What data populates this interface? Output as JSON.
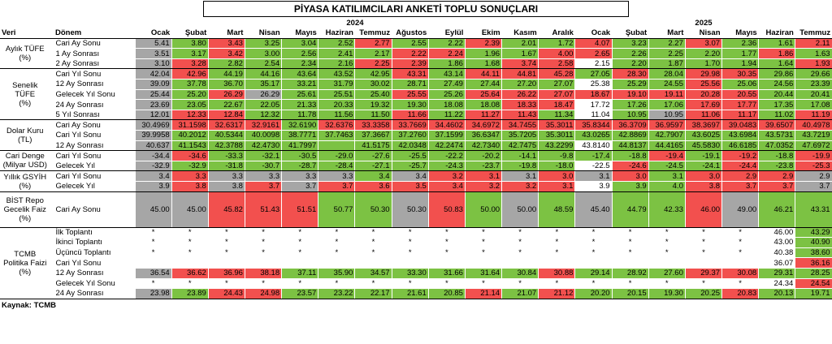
{
  "title": "PİYASA KATILIMCILARI ANKETİ TOPLU SONUÇLARI",
  "header": {
    "veri": "Veri",
    "donem": "Dönem",
    "years": [
      {
        "label": "2024",
        "span": 12
      },
      {
        "label": "2025",
        "span": 7
      }
    ],
    "months": [
      "Ocak",
      "Şubat",
      "Mart",
      "Nisan",
      "Mayıs",
      "Haziran",
      "Temmuz",
      "Ağustos",
      "Eylül",
      "Ekim",
      "Kasım",
      "Aralık",
      "Ocak",
      "Şubat",
      "Mart",
      "Nisan",
      "Mayıs",
      "Haziran",
      "Temmuz"
    ]
  },
  "palette": {
    "g": "#7cc243",
    "r": "#f2504e",
    "s": "#a6a6a6",
    "w": "#ffffff"
  },
  "groups": [
    {
      "label": "Aylık TÜFE\n(%)",
      "rows": [
        {
          "label": "Cari Ay Sonu",
          "colors": "sgrgggrggrggrggrggr",
          "values": [
            "5.41",
            "3.80",
            "3.43",
            "3.25",
            "3.04",
            "2.52",
            "2.77",
            "2.55",
            "2.22",
            "2.39",
            "2.01",
            "1.72",
            "4.07",
            "3.23",
            "2.27",
            "3.07",
            "2.36",
            "1.61",
            "2.11"
          ]
        },
        {
          "label": "1 Ay Sonrası",
          "colors": "sgrggggrrggrrggggrg",
          "values": [
            "3.51",
            "3.17",
            "3.42",
            "3.00",
            "2.56",
            "2.41",
            "2.17",
            "2.22",
            "2.24",
            "1.96",
            "1.67",
            "4.00",
            "2.65",
            "2.26",
            "2.25",
            "2.20",
            "1.77",
            "1.86",
            "1.63"
          ]
        },
        {
          "label": "2 Ay Sonrası",
          "colors": "srggggrrggrrwgggggr",
          "values": [
            "3.10",
            "3.28",
            "2.82",
            "2.54",
            "2.34",
            "2.16",
            "2.25",
            "2.39",
            "1.86",
            "1.68",
            "3.74",
            "2.58",
            "2.15",
            "2.20",
            "1.87",
            "1.70",
            "1.94",
            "1.64",
            "1.93"
          ]
        }
      ]
    },
    {
      "label": "Senelik TÜFE\n(%)",
      "rows": [
        {
          "label": "Cari Yıl Sonu",
          "colors": "srgggggrgrrrgrgrrgg",
          "values": [
            "42.04",
            "42.96",
            "44.19",
            "44.16",
            "43.64",
            "43.52",
            "42.95",
            "43.31",
            "43.14",
            "44.11",
            "44.81",
            "45.28",
            "27.05",
            "28.30",
            "28.04",
            "29.98",
            "30.35",
            "29.86",
            "29.66"
          ]
        },
        {
          "label": "12 Ay Sonrası",
          "colors": "sgggggggggggwggrggg",
          "values": [
            "39.09",
            "37.78",
            "36.70",
            "35.17",
            "33.21",
            "31.79",
            "30.02",
            "28.71",
            "27.49",
            "27.44",
            "27.20",
            "27.07",
            "25.38",
            "25.29",
            "24.55",
            "25.56",
            "25.06",
            "24.56",
            "23.39"
          ]
        },
        {
          "label": "Gelecek Yıl Sonu",
          "colors": "sgrsgggrgrrrrrrrrgg",
          "values": [
            "25.44",
            "25.20",
            "26.29",
            "26.29",
            "25.61",
            "25.51",
            "25.40",
            "25.55",
            "25.26",
            "25.64",
            "26.22",
            "27.07",
            "18.67",
            "19.10",
            "19.11",
            "20.28",
            "20.55",
            "20.44",
            "20.41"
          ]
        },
        {
          "label": "24 Ay Sonrası",
          "colors": "sgggggggggrrwggrrgg",
          "values": [
            "23.69",
            "23.05",
            "22.67",
            "22.05",
            "21.33",
            "20.33",
            "19.32",
            "19.30",
            "18.08",
            "18.08",
            "18.33",
            "18.47",
            "17.72",
            "17.26",
            "17.06",
            "17.69",
            "17.77",
            "17.35",
            "17.08"
          ]
        },
        {
          "label": "5 Yıl Sonrası",
          "colors": "srrggggrgrrgwgsrrgr",
          "values": [
            "12.01",
            "12.33",
            "12.84",
            "12.32",
            "11.78",
            "11.56",
            "11.50",
            "11.66",
            "11.22",
            "11.27",
            "11.43",
            "11.34",
            "11.04",
            "10.95",
            "10.95",
            "11.06",
            "11.17",
            "11.02",
            "11.19"
          ]
        }
      ]
    },
    {
      "label": "Dolar Kuru\n(TL)",
      "rows": [
        {
          "label": "Cari Ay Sonu",
          "colors": "srrrgrrrrrrrrrrrrrr",
          "values": [
            "30.4969",
            "31.1598",
            "32.6317",
            "32.9161",
            "32.6190",
            "32.6376",
            "33.3358",
            "33.7669",
            "34.4602",
            "34.6972",
            "34.7455",
            "35.3011",
            "35.8344",
            "36.3709",
            "36.9597",
            "38.3697",
            "39.0483",
            "39.6507",
            "40.4978"
          ]
        },
        {
          "label": "Cari Yıl Sonu",
          "colors": "sgggggggggggggggggg",
          "values": [
            "39.9958",
            "40.2012",
            "40.5344",
            "40.0098",
            "38.7771",
            "37.7463",
            "37.3667",
            "37.2760",
            "37.1599",
            "36.6347",
            "35.7205",
            "35.3011",
            "43.0265",
            "42.8869",
            "42.7907",
            "43.6025",
            "43.6984",
            "43.5731",
            "43.7219"
          ]
        },
        {
          "label": "12 Ay Sonrası",
          "colors": "sgggggggggggwgggggg",
          "values": [
            "40.637",
            "41.1543",
            "42.3788",
            "42.4730",
            "41.7997",
            null,
            "41.5175",
            "42.0348",
            "42.2474",
            "42.7340",
            "42.7475",
            "43.2299",
            "43.8140",
            "44.8137",
            "44.4165",
            "45.5830",
            "46.6185",
            "47.0352",
            "47.6972"
          ]
        }
      ]
    },
    {
      "label": "Cari Denge\n(Milyar USD)",
      "rows": [
        {
          "label": "Cari Yıl Sonu",
          "colors": "srggggggggggggrgrgr",
          "values": [
            "-34.4",
            "-34.6",
            "-33.3",
            "-32.1",
            "-30.5",
            "-29.0",
            "-27.6",
            "-25.5",
            "-22.2",
            "-20.2",
            "-14.1",
            "-9.8",
            "-17.4",
            "-18.8",
            "-19.4",
            "-19.1",
            "-19.2",
            "-18.8",
            "-19.9"
          ]
        },
        {
          "label": "Gelecek Yıl",
          "colors": "sgggggggggggwrggrgr",
          "values": [
            "-32.9",
            "-32.9",
            "-31.8",
            "-30.7",
            "-28.7",
            "-28.4",
            "-27.1",
            "-25.7",
            "-24.3",
            "-23.7",
            "-19.8",
            "-18.0",
            "-22.5",
            "-24.6",
            "-24.5",
            "-24.1",
            "-24.4",
            "-23.8",
            "-25.3"
          ]
        }
      ]
    },
    {
      "label": "Yıllık GSYİH\n(%)",
      "rows": [
        {
          "label": "Cari Yıl Sonu",
          "colors": "srssssgsrrsrsrgrrrs",
          "values": [
            "3.4",
            "3.3",
            "3.3",
            "3.3",
            "3.3",
            "3.3",
            "3.4",
            "3.4",
            "3.2",
            "3.1",
            "3.1",
            "3.0",
            "3.1",
            "3.0",
            "3.1",
            "3.0",
            "2.9",
            "2.9",
            "2.9"
          ]
        },
        {
          "label": "Gelecek Yıl",
          "colors": "srsrsrrrrrrrwggrrrs",
          "values": [
            "3.9",
            "3.8",
            "3.8",
            "3.7",
            "3.7",
            "3.7",
            "3.6",
            "3.5",
            "3.4",
            "3.2",
            "3.2",
            "3.1",
            "3.9",
            "3.9",
            "4.0",
            "3.8",
            "3.7",
            "3.7",
            "3.7"
          ]
        }
      ]
    },
    {
      "label": "BİST Repo\nGecelik Faiz\n(%)",
      "tall": true,
      "rows": [
        {
          "label": "Cari Ay Sonu",
          "colors": "ssrrrggsrgsgsggrsgg",
          "values": [
            "45.00",
            "45.00",
            "45.82",
            "51.43",
            "51.51",
            "50.77",
            "50.30",
            "50.30",
            "50.83",
            "50.00",
            "50.00",
            "48.59",
            "45.40",
            "44.79",
            "42.33",
            "46.00",
            "49.00",
            "46.21",
            "43.31"
          ]
        }
      ]
    },
    {
      "label": "TCMB\nPolitika Faizi\n(%)",
      "rows": [
        {
          "label": "İlk Toplantı",
          "colors": "wwwwwwwwwwwwwwwwwwg",
          "values": [
            "*",
            "*",
            "*",
            "*",
            "*",
            "*",
            "*",
            "*",
            "*",
            "*",
            "*",
            "*",
            "*",
            "*",
            "*",
            "*",
            "*",
            "46.00",
            "43.29"
          ]
        },
        {
          "label": "İkinci Toplantı",
          "colors": "wwwwwwwwwwwwwwwwwwg",
          "values": [
            "*",
            "*",
            "*",
            "*",
            "*",
            "*",
            "*",
            "*",
            "*",
            "*",
            "*",
            "*",
            "*",
            "*",
            "*",
            "*",
            "*",
            "43.00",
            "40.90"
          ]
        },
        {
          "label": "Üçüncü Toplantı",
          "colors": "wwwwwwwwwwwwwwwwwwg",
          "values": [
            "*",
            "*",
            "*",
            "*",
            "*",
            "*",
            "*",
            "*",
            "*",
            "*",
            "*",
            "*",
            "*",
            "*",
            "*",
            "*",
            "*",
            "40.38",
            "38.60"
          ]
        },
        {
          "label": "Cari Yıl Sonu",
          "colors": "wwwwwwwwwwwwwwwwwwr",
          "values": [
            null,
            null,
            null,
            null,
            null,
            null,
            null,
            null,
            null,
            null,
            null,
            null,
            null,
            null,
            null,
            null,
            null,
            "36.07",
            "36.16"
          ]
        },
        {
          "label": "12 Ay Sonrası",
          "colors": "srrrgggggggrgggrrgg",
          "values": [
            "36.54",
            "36.62",
            "36.96",
            "38.18",
            "37.11",
            "35.90",
            "34.57",
            "33.30",
            "31.66",
            "31.64",
            "30.84",
            "30.88",
            "29.14",
            "28.92",
            "27.60",
            "29.37",
            "30.08",
            "29.31",
            "28.25"
          ]
        },
        {
          "label": "Gelecek Yıl Sonu",
          "colors": "wwwwwwwwwwwwwwwwwwr",
          "values": [
            "*",
            "*",
            "*",
            "*",
            "*",
            "*",
            "*",
            "*",
            "*",
            "*",
            "*",
            "*",
            "*",
            "*",
            "*",
            "*",
            "*",
            "24.34",
            "24.54"
          ]
        },
        {
          "label": "24 Ay Sonrası",
          "colors": "sgrrgggggrgrggggrgg",
          "values": [
            "23.98",
            "23.89",
            "24.43",
            "24.98",
            "23.57",
            "23.22",
            "22.17",
            "21.61",
            "20.85",
            "21.14",
            "21.07",
            "21.12",
            "20.20",
            "20.15",
            "19.30",
            "20.25",
            "20.83",
            "20.13",
            "19.71"
          ]
        }
      ]
    }
  ],
  "source": "Kaynak: TCMB"
}
